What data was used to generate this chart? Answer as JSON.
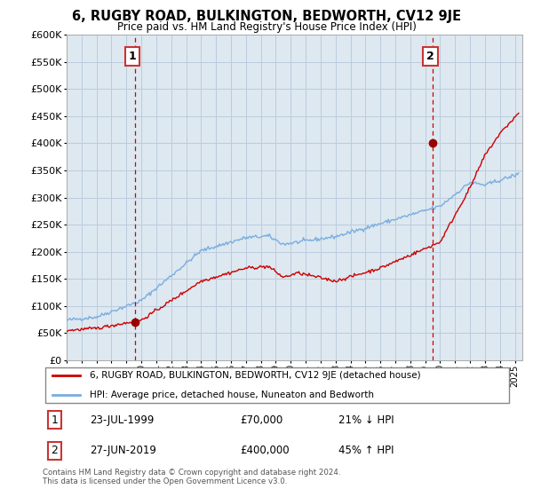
{
  "title": "6, RUGBY ROAD, BULKINGTON, BEDWORTH, CV12 9JE",
  "subtitle": "Price paid vs. HM Land Registry's House Price Index (HPI)",
  "ylim": [
    0,
    600000
  ],
  "yticks": [
    0,
    50000,
    100000,
    150000,
    200000,
    250000,
    300000,
    350000,
    400000,
    450000,
    500000,
    550000,
    600000
  ],
  "xlim_start": 1995.0,
  "xlim_end": 2025.5,
  "sale1_x": 1999.55,
  "sale1_y": 70000,
  "sale2_x": 2019.49,
  "sale2_y": 400000,
  "red_line_color": "#cc0000",
  "blue_line_color": "#7aade0",
  "dashed_line_color": "#cc0000",
  "point_color": "#990000",
  "plot_bg_color": "#dde8f0",
  "legend_red_label": "6, RUGBY ROAD, BULKINGTON, BEDWORTH, CV12 9JE (detached house)",
  "legend_blue_label": "HPI: Average price, detached house, Nuneaton and Bedworth",
  "annotation1_num": "1",
  "annotation1_date": "23-JUL-1999",
  "annotation1_price": "£70,000",
  "annotation1_hpi": "21% ↓ HPI",
  "annotation2_num": "2",
  "annotation2_date": "27-JUN-2019",
  "annotation2_price": "£400,000",
  "annotation2_hpi": "45% ↑ HPI",
  "footer": "Contains HM Land Registry data © Crown copyright and database right 2024.\nThis data is licensed under the Open Government Licence v3.0.",
  "background_color": "#ffffff",
  "grid_color": "#bbccdd"
}
